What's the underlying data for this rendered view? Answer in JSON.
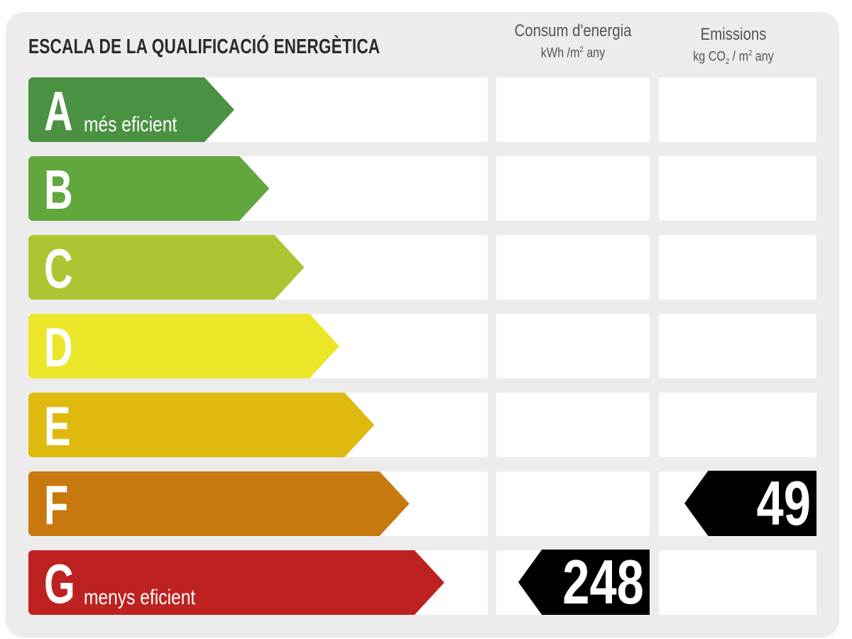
{
  "title": "ESCALA DE LA QUALIFICACIÓ ENERGÈTICA",
  "columns": {
    "consumption": {
      "label": "Consum d'energia",
      "unit_prefix": "kWh /m",
      "unit_sup": "2",
      "unit_suffix": " any"
    },
    "emissions": {
      "label": "Emissions",
      "unit_prefix": "kg CO",
      "unit_sub": "2",
      "unit_mid": " / m",
      "unit_sup": "2",
      "unit_suffix": " any"
    }
  },
  "ratings": [
    {
      "letter": "A",
      "sublabel": "més eficient",
      "color": "#4b9142"
    },
    {
      "letter": "B",
      "sublabel": "",
      "color": "#62a63e"
    },
    {
      "letter": "C",
      "sublabel": "",
      "color": "#adc532"
    },
    {
      "letter": "D",
      "sublabel": "",
      "color": "#ece629"
    },
    {
      "letter": "E",
      "sublabel": "",
      "color": "#e0b90f"
    },
    {
      "letter": "F",
      "sublabel": "",
      "color": "#c7780f"
    },
    {
      "letter": "G",
      "sublabel": "menys eficient",
      "color": "#bd2220"
    }
  ],
  "consumption_value": {
    "value": "248",
    "rating": "G"
  },
  "emissions_value": {
    "value": "49",
    "rating": "F"
  }
}
